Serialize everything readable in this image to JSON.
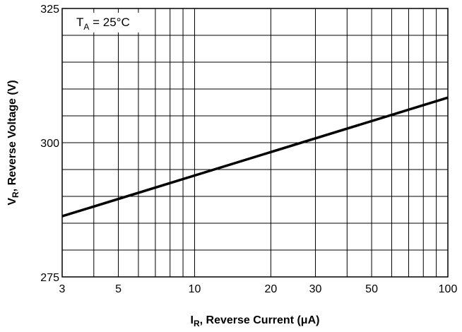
{
  "chart_data": {
    "type": "line",
    "x_scale": "log",
    "xlim": [
      3,
      100
    ],
    "ylim": [
      275,
      325
    ],
    "x_ticks": [
      3,
      5,
      10,
      20,
      30,
      50,
      100
    ],
    "x_tick_labels": [
      "3",
      "5",
      "10",
      "20",
      "30",
      "50",
      "100"
    ],
    "y_ticks": [
      275,
      300,
      325
    ],
    "y_tick_labels": [
      "275",
      "300",
      "325"
    ],
    "grid": true,
    "xlabel": {
      "main": "I",
      "sub": "R",
      "rest": ", Reverse Current (μA)"
    },
    "ylabel": {
      "main": "V",
      "sub": "R",
      "rest": ", Reverse Voltage (V)"
    },
    "annotation": {
      "main": "T",
      "sub": "A",
      "rest": " = 25°C"
    },
    "series": [
      {
        "x": [
          3,
          100
        ],
        "y": [
          286.3,
          308.4
        ]
      }
    ]
  }
}
